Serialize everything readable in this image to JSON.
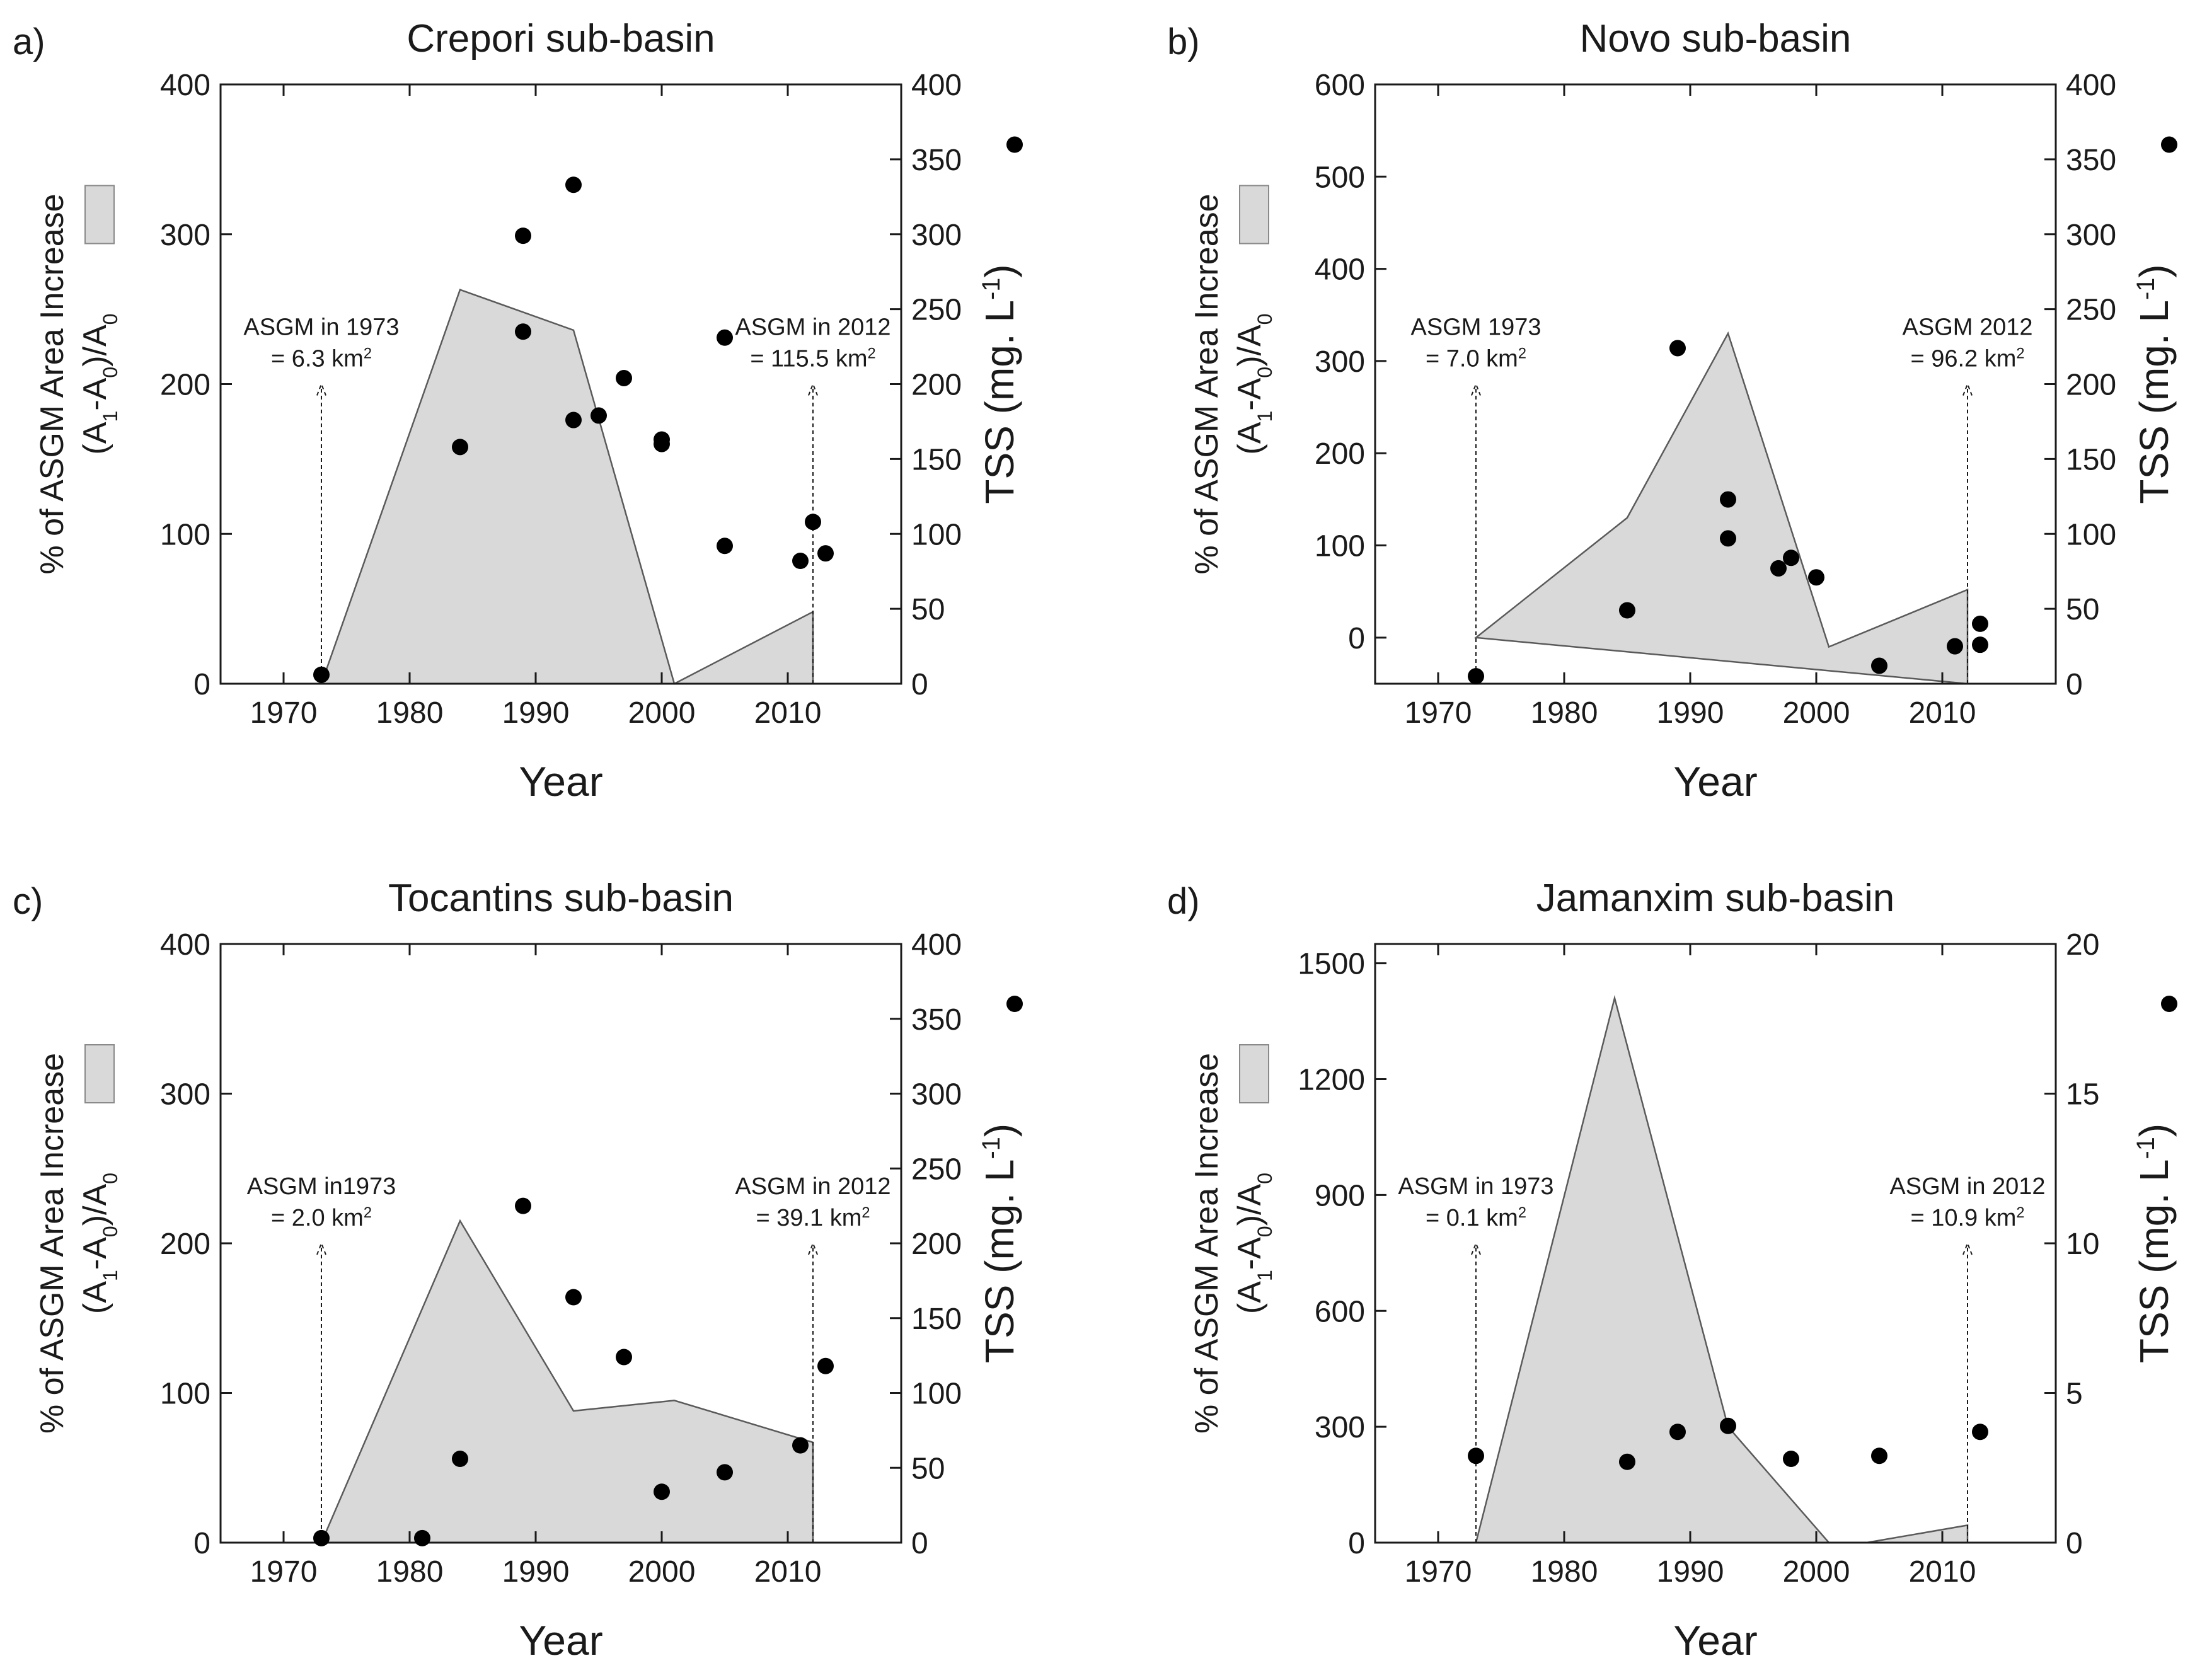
{
  "chart_data": [
    {
      "type": "area+scatter",
      "panel_label": "a)",
      "title": "Crepori sub-basin",
      "xlabel": "Year",
      "ylabel_line1": "% of ASGM Area Increase",
      "ylabel_line2": "(A1-A0)/A0",
      "y2label": "TSS (mg. L-1)",
      "xlim": [
        1965,
        2019
      ],
      "xticks": [
        1970,
        1980,
        1990,
        2000,
        2010
      ],
      "ylim": [
        0,
        400
      ],
      "yticks": [
        0,
        100,
        200,
        300,
        400
      ],
      "y2lim": [
        0,
        400
      ],
      "y2ticks": [
        0,
        50,
        100,
        150,
        200,
        250,
        300,
        350,
        400
      ],
      "area": {
        "name": "% of ASGM Area Increase",
        "x": [
          1973,
          1984,
          1993,
          2001,
          2012,
          2012
        ],
        "y": [
          0,
          263,
          236,
          0,
          48,
          0
        ]
      },
      "scatter": {
        "name": "TSS",
        "x": [
          1973,
          1984,
          1989,
          1989,
          1993,
          1993,
          1995,
          1997,
          2000,
          2000,
          2005,
          2005,
          2011,
          2012,
          2013
        ],
        "y": [
          6,
          158,
          299,
          235,
          333,
          176,
          179,
          204,
          163,
          160,
          231,
          92,
          82,
          108,
          87
        ]
      },
      "annotations": [
        {
          "x": 1973,
          "line1": "ASGM in 1973",
          "line2": "= 6.3 km2"
        },
        {
          "x": 2012,
          "line1": "ASGM in 2012",
          "line2": "= 115.5 km2"
        }
      ]
    },
    {
      "type": "area+scatter",
      "panel_label": "b)",
      "title": "Novo sub-basin",
      "xlabel": "Year",
      "ylabel_line1": "% of ASGM Area Increase",
      "ylabel_line2": "(A1-A0)/A0",
      "y2label": "TSS (mg. L-1)",
      "xlim": [
        1965,
        2019
      ],
      "xticks": [
        1970,
        1980,
        1990,
        2000,
        2010
      ],
      "ylim": [
        -50,
        600
      ],
      "yticks": [
        0,
        100,
        200,
        300,
        400,
        500,
        600
      ],
      "y2lim": [
        0,
        400
      ],
      "y2ticks": [
        0,
        50,
        100,
        150,
        200,
        250,
        300,
        350,
        400
      ],
      "area": {
        "name": "% of ASGM Area Increase",
        "x": [
          1973,
          1985,
          1993,
          2001,
          2012,
          2012
        ],
        "y": [
          0,
          130,
          330,
          -10,
          52,
          -50
        ]
      },
      "scatter": {
        "name": "TSS",
        "x": [
          1973,
          1985,
          1989,
          1993,
          1993,
          1997,
          1998,
          2000,
          2005,
          2011,
          2013,
          2013
        ],
        "y": [
          5,
          49,
          224,
          123,
          97,
          77,
          84,
          71,
          12,
          25,
          40,
          26
        ]
      },
      "annotations": [
        {
          "x": 1973,
          "line1": "ASGM 1973",
          "line2": "= 7.0 km2"
        },
        {
          "x": 2012,
          "line1": "ASGM 2012",
          "line2": "= 96.2 km2"
        }
      ]
    },
    {
      "type": "area+scatter",
      "panel_label": "c)",
      "title": "Tocantins sub-basin",
      "xlabel": "Year",
      "ylabel_line1": "% of ASGM Area Increase",
      "ylabel_line2": "(A1-A0)/A0",
      "y2label": "TSS (mg. L-1)",
      "xlim": [
        1965,
        2019
      ],
      "xticks": [
        1970,
        1980,
        1990,
        2000,
        2010
      ],
      "ylim": [
        0,
        400
      ],
      "yticks": [
        0,
        100,
        200,
        300,
        400
      ],
      "y2lim": [
        0,
        400
      ],
      "y2ticks": [
        0,
        50,
        100,
        150,
        200,
        250,
        300,
        350,
        400
      ],
      "area": {
        "name": "% of ASGM Area Increase",
        "x": [
          1973,
          1984,
          1993,
          2001,
          2012,
          2012
        ],
        "y": [
          0,
          215,
          88,
          95,
          67,
          0
        ]
      },
      "scatter": {
        "name": "TSS",
        "x": [
          1973,
          1981,
          1984,
          1989,
          1993,
          1997,
          2000,
          2005,
          2011,
          2013
        ],
        "y": [
          3,
          3,
          56,
          225,
          164,
          124,
          34,
          47,
          65,
          118
        ]
      },
      "annotations": [
        {
          "x": 1973,
          "line1": "ASGM in1973",
          "line2": "= 2.0 km2"
        },
        {
          "x": 2012,
          "line1": "ASGM in 2012",
          "line2": "= 39.1 km2"
        }
      ]
    },
    {
      "type": "area+scatter",
      "panel_label": "d)",
      "title": "Jamanxim sub-basin",
      "xlabel": "Year",
      "ylabel_line1": "% of ASGM Area Increase",
      "ylabel_line2": "(A1-A0)/A0",
      "y2label": "TSS (mg. L-1)",
      "xlim": [
        1965,
        2019
      ],
      "xticks": [
        1970,
        1980,
        1990,
        2000,
        2010
      ],
      "ylim": [
        0,
        1550
      ],
      "yticks": [
        0,
        300,
        600,
        900,
        1200,
        1500
      ],
      "y2lim": [
        0,
        20
      ],
      "y2ticks": [
        0,
        5,
        10,
        15,
        20
      ],
      "area": {
        "name": "% of ASGM Area Increase",
        "x": [
          1973,
          1984,
          1993,
          2001,
          2004,
          2012,
          2012
        ],
        "y": [
          0,
          1410,
          300,
          0,
          0,
          45,
          0
        ]
      },
      "scatter": {
        "name": "TSS",
        "x": [
          1973,
          1985,
          1989,
          1993,
          1998,
          2005,
          2013
        ],
        "y": [
          2.9,
          2.7,
          3.7,
          3.9,
          2.8,
          2.9,
          3.7
        ]
      },
      "annotations": [
        {
          "x": 1973,
          "line1": "ASGM in 1973",
          "line2": "= 0.1 km2"
        },
        {
          "x": 2012,
          "line1": "ASGM in 2012",
          "line2": "= 10.9 km2"
        }
      ]
    }
  ]
}
